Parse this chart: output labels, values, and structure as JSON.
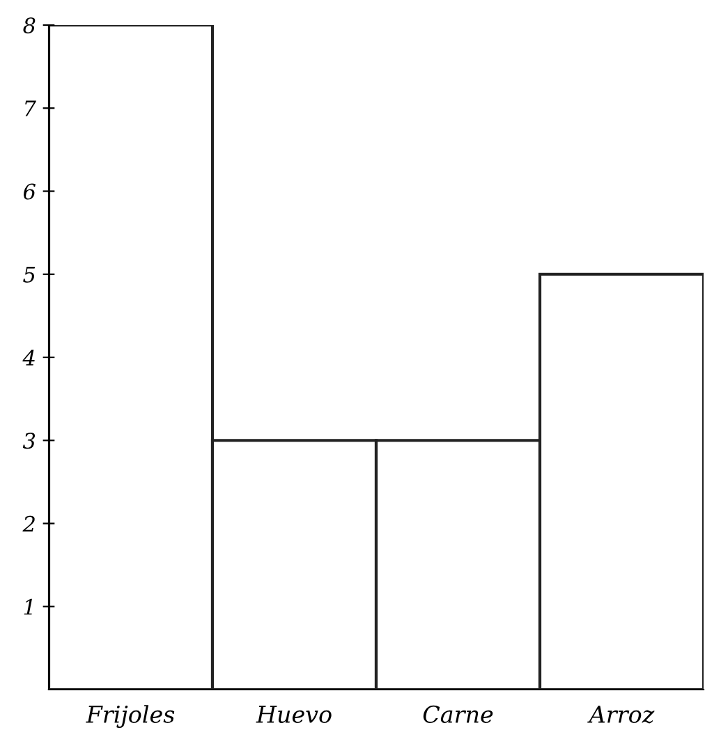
{
  "chart_data": {
    "type": "bar",
    "categories": [
      "Frijoles",
      "Huevo",
      "Carne",
      "Arroz"
    ],
    "values": [
      8,
      3,
      3,
      5
    ],
    "color": "#ffffff",
    "ylim": [
      0,
      8
    ],
    "yticks": [
      1,
      2,
      3,
      4,
      5,
      6,
      7,
      8
    ],
    "grid": false,
    "legend": false
  }
}
